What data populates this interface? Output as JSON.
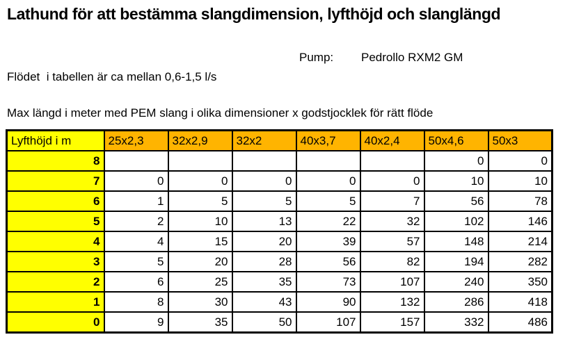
{
  "header": {
    "title": "Lathund för att bestämma slangdimension, lyfthöjd och slanglängd",
    "pump_label": "Pump:",
    "pump_value": "Pedrollo RXM2 GM",
    "flow_note": "Flödet  i tabellen är ca mellan 0,6-1,5 l/s",
    "table_caption": "Max längd i meter med PEM slang i olika dimensioner x godstjocklek för rätt flöde"
  },
  "table": {
    "type": "table",
    "columns": [
      "Lyfthöjd i m",
      "25x2,3",
      "32x2,9",
      "32x2",
      "40x3,7",
      "40x2,4",
      "50x4,6",
      "50x3"
    ],
    "rows": [
      [
        "8",
        "",
        "",
        "",
        "",
        "",
        "0",
        "0"
      ],
      [
        "7",
        "0",
        "0",
        "0",
        "0",
        "0",
        "10",
        "10"
      ],
      [
        "6",
        "1",
        "5",
        "5",
        "5",
        "7",
        "56",
        "78"
      ],
      [
        "5",
        "2",
        "10",
        "13",
        "22",
        "32",
        "102",
        "146"
      ],
      [
        "4",
        "4",
        "15",
        "20",
        "39",
        "57",
        "148",
        "214"
      ],
      [
        "3",
        "5",
        "20",
        "28",
        "56",
        "82",
        "194",
        "282"
      ],
      [
        "2",
        "6",
        "25",
        "35",
        "73",
        "107",
        "240",
        "350"
      ],
      [
        "1",
        "8",
        "30",
        "43",
        "90",
        "132",
        "286",
        "418"
      ],
      [
        "0",
        "9",
        "35",
        "50",
        "107",
        "157",
        "332",
        "486"
      ]
    ]
  },
  "colors": {
    "column_header_fill": "#ffb400",
    "row_header_fill": "#ffff00",
    "border": "#000000",
    "background": "#ffffff",
    "text": "#000000"
  }
}
